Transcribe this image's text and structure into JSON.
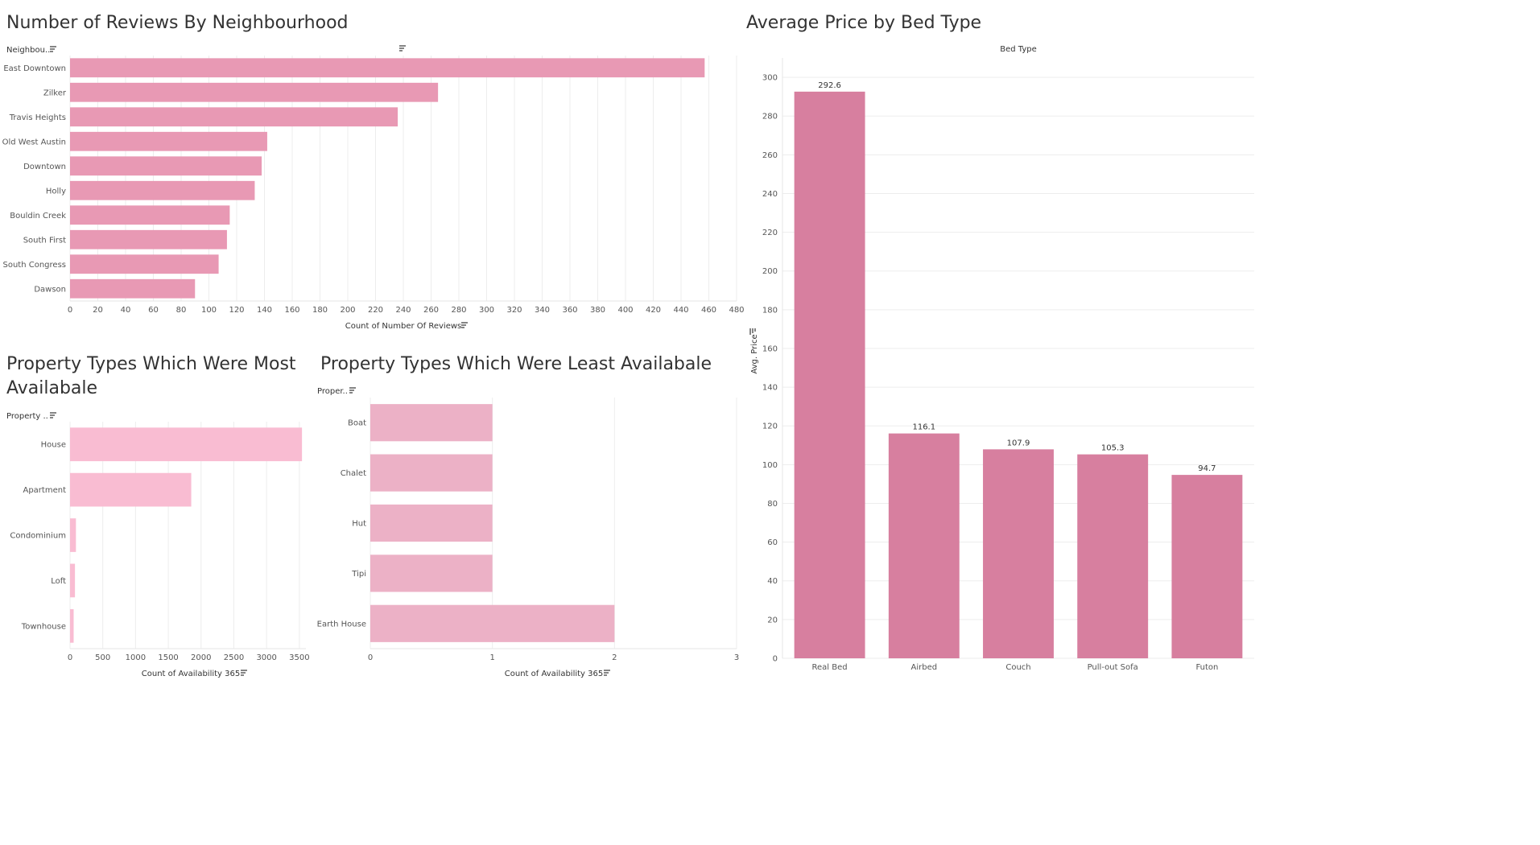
{
  "chart_data": [
    {
      "id": "reviews",
      "type": "bar",
      "orientation": "horizontal",
      "title": "Number of Reviews By Neighbourhood",
      "category_header": "Neighbou..",
      "xlabel": "Count of Number Of Reviews",
      "categories": [
        "East Downtown",
        "Zilker",
        "Travis Heights",
        "Old West Austin",
        "Downtown",
        "Holly",
        "Bouldin Creek",
        "South First",
        "South Congress",
        "Dawson"
      ],
      "values": [
        457,
        265,
        236,
        142,
        138,
        133,
        115,
        113,
        107,
        90
      ],
      "xlim": [
        0,
        480
      ],
      "xticks": [
        0,
        20,
        40,
        60,
        80,
        100,
        120,
        140,
        160,
        180,
        200,
        220,
        240,
        260,
        280,
        300,
        320,
        340,
        360,
        380,
        400,
        420,
        440,
        460,
        480
      ],
      "grid": true,
      "color": "#e899b4"
    },
    {
      "id": "most",
      "type": "bar",
      "orientation": "horizontal",
      "title": "Property Types Which Were Most Availabale",
      "title_lines": [
        "Property Types Which Were Most",
        "Availabale"
      ],
      "category_header": "Property ..",
      "xlabel": "Count of Availability 365",
      "categories": [
        "House",
        "Apartment",
        "Condominium",
        "Loft",
        "Townhouse"
      ],
      "values": [
        3540,
        1850,
        90,
        75,
        55
      ],
      "xlim": [
        0,
        3600
      ],
      "xticks": [
        0,
        500,
        1000,
        1500,
        2000,
        2500,
        3000,
        3500
      ],
      "grid": true,
      "color": "#f9bcd2"
    },
    {
      "id": "least",
      "type": "bar",
      "orientation": "horizontal",
      "title": "Property Types Which Were Least Availabale",
      "category_header": "Proper..",
      "xlabel": "Count of Availability 365",
      "categories": [
        "Boat",
        "Chalet",
        "Hut",
        "Tipi",
        "Earth House"
      ],
      "values": [
        1,
        1,
        1,
        1,
        2
      ],
      "xlim": [
        0,
        3
      ],
      "xticks": [
        0,
        1,
        2,
        3
      ],
      "grid": true,
      "color": "#ecb1c6"
    },
    {
      "id": "price",
      "type": "bar",
      "orientation": "vertical",
      "title": "Average Price by Bed Type",
      "category_header": "Bed Type",
      "ylabel": "Avg. Price",
      "categories": [
        "Real Bed",
        "Airbed",
        "Couch",
        "Pull-out Sofa",
        "Futon"
      ],
      "values": [
        292.6,
        116.1,
        107.9,
        105.3,
        94.7
      ],
      "data_labels": [
        "292.6",
        "116.1",
        "107.9",
        "105.3",
        "94.7"
      ],
      "ylim": [
        0,
        310
      ],
      "yticks": [
        0,
        20,
        40,
        60,
        80,
        100,
        120,
        140,
        160,
        180,
        200,
        220,
        240,
        260,
        280,
        300
      ],
      "grid": true,
      "color": "#d77f9f"
    }
  ]
}
